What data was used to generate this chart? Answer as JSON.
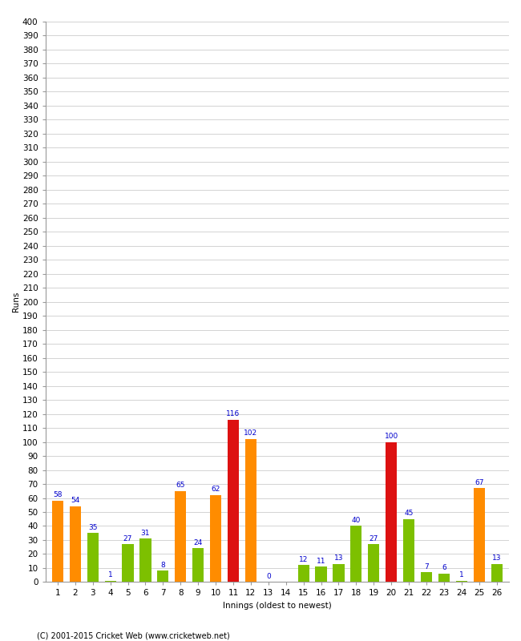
{
  "innings": [
    1,
    2,
    3,
    4,
    5,
    6,
    7,
    8,
    9,
    10,
    11,
    12,
    13,
    14,
    15,
    16,
    17,
    18,
    19,
    20,
    21,
    22,
    23,
    24,
    25,
    26
  ],
  "values": [
    58,
    54,
    35,
    1,
    27,
    31,
    8,
    65,
    24,
    62,
    116,
    102,
    0,
    0,
    12,
    11,
    13,
    40,
    27,
    100,
    45,
    7,
    6,
    1,
    67,
    13
  ],
  "colors": [
    "#ff8c00",
    "#ff8c00",
    "#7dc000",
    "#7dc000",
    "#7dc000",
    "#7dc000",
    "#7dc000",
    "#ff8c00",
    "#7dc000",
    "#ff8c00",
    "#dd1111",
    "#ff8c00",
    "#ff8c00",
    "#7dc000",
    "#7dc000",
    "#7dc000",
    "#7dc000",
    "#7dc000",
    "#7dc000",
    "#dd1111",
    "#7dc000",
    "#7dc000",
    "#7dc000",
    "#7dc000",
    "#ff8c00",
    "#7dc000"
  ],
  "show_label": [
    true,
    true,
    true,
    true,
    true,
    true,
    true,
    true,
    true,
    true,
    true,
    true,
    true,
    false,
    true,
    true,
    true,
    true,
    true,
    true,
    true,
    true,
    true,
    true,
    true,
    true
  ],
  "xlabel": "Innings (oldest to newest)",
  "ylabel": "Runs",
  "ylim": [
    0,
    400
  ],
  "ytick_step": 10,
  "background_color": "#ffffff",
  "grid_color": "#cccccc",
  "label_color": "#0000cc",
  "label_fontsize": 6.5,
  "axis_fontsize": 7.5,
  "bar_width": 0.65,
  "copyright": "(C) 2001-2015 Cricket Web (www.cricketweb.net)"
}
